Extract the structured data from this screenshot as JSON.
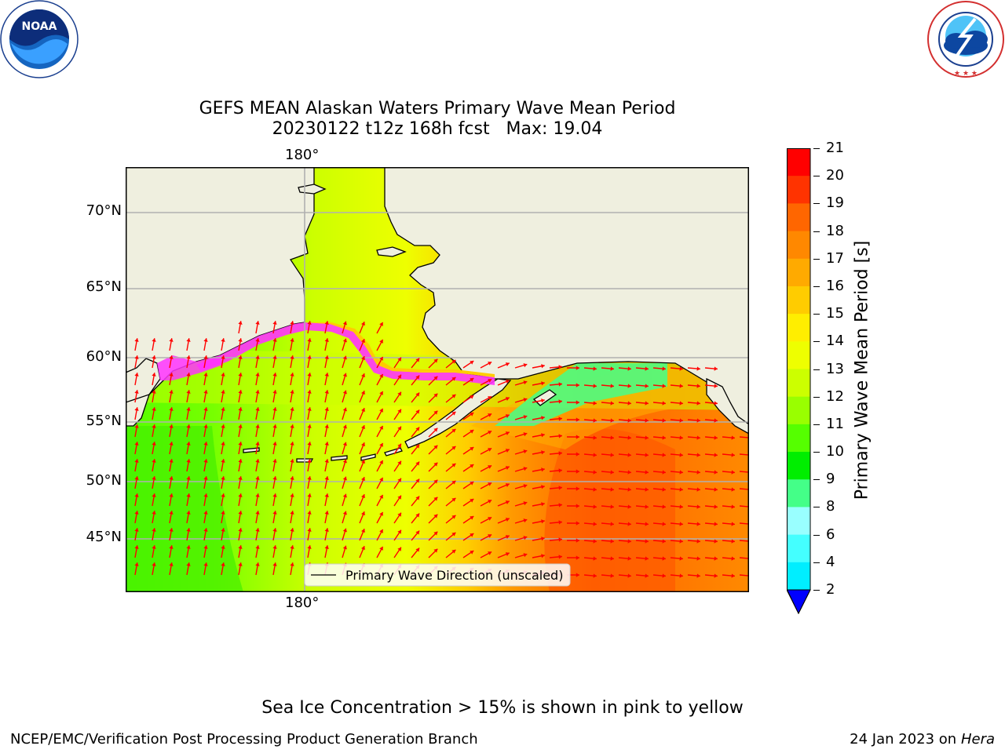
{
  "logos": {
    "noaa_text": "NOAA",
    "noaa_ring_text": "NATIONAL OCEANIC AND ATMOSPHERIC ADMINISTRATION · U.S. DEPARTMENT OF COMMERCE",
    "nws_ring_text": "NATIONAL WEATHER SERVICE"
  },
  "title": {
    "line1": "GEFS MEAN Alaskan Waters Primary Wave Mean Period",
    "line2": "20230122 t12z 168h fcst   Max: 19.04"
  },
  "map": {
    "lat_labels": [
      "70°N",
      "65°N",
      "60°N",
      "55°N",
      "50°N",
      "45°N"
    ],
    "lon_label_top": "180°",
    "lon_label_bottom": "180°",
    "legend_label": "Primary Wave Direction (unscaled)",
    "colors": {
      "land": "#efefdf",
      "coast": "#000000",
      "grid": "#b0b0b0",
      "arrow": "#ff0000",
      "ice": "#ff33ff"
    }
  },
  "colorbar": {
    "label": "Primary Wave Mean Period [s]",
    "ticks": [
      "21",
      "20",
      "19",
      "18",
      "17",
      "16",
      "15",
      "14",
      "13",
      "12",
      "11",
      "10",
      "9",
      "8",
      "6",
      "4",
      "2"
    ],
    "colors": [
      "#ff0000",
      "#ff3300",
      "#ff6600",
      "#ff8800",
      "#ffaa00",
      "#ffcc00",
      "#ffee00",
      "#eeff00",
      "#ccff00",
      "#99ff00",
      "#55ff00",
      "#00ee00",
      "#44ff88",
      "#99ffff",
      "#44ffff",
      "#00eeff",
      "#0077ff"
    ],
    "under_color": "#0000ff"
  },
  "footnote": "Sea Ice Concentration > 15% is shown in pink to yellow",
  "footer": {
    "left": "NCEP/EMC/Verification Post Processing Product Generation Branch",
    "right_date": "24 Jan 2023 on ",
    "right_host": "Hera"
  }
}
